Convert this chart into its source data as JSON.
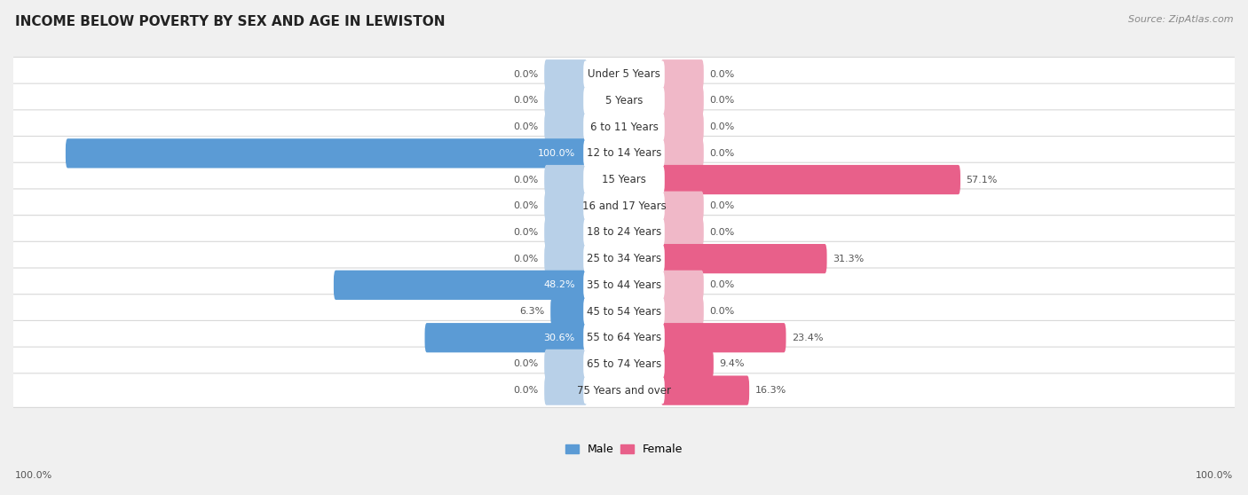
{
  "title": "INCOME BELOW POVERTY BY SEX AND AGE IN LEWISTON",
  "source": "Source: ZipAtlas.com",
  "categories": [
    "Under 5 Years",
    "5 Years",
    "6 to 11 Years",
    "12 to 14 Years",
    "15 Years",
    "16 and 17 Years",
    "18 to 24 Years",
    "25 to 34 Years",
    "35 to 44 Years",
    "45 to 54 Years",
    "55 to 64 Years",
    "65 to 74 Years",
    "75 Years and over"
  ],
  "male": [
    0.0,
    0.0,
    0.0,
    100.0,
    0.0,
    0.0,
    0.0,
    0.0,
    48.2,
    6.3,
    30.6,
    0.0,
    0.0
  ],
  "female": [
    0.0,
    0.0,
    0.0,
    0.0,
    57.1,
    0.0,
    0.0,
    31.3,
    0.0,
    0.0,
    23.4,
    9.4,
    16.3
  ],
  "male_color_light": "#b8d0e8",
  "female_color_light": "#f0b8c8",
  "male_color_full": "#5b9bd5",
  "female_color_full": "#e8608a",
  "background_color": "#f0f0f0",
  "row_bg_color": "#ffffff",
  "row_border_color": "#d8d8d8",
  "axis_max": 100.0,
  "legend_male": "Male",
  "legend_female": "Female",
  "title_fontsize": 11,
  "label_fontsize": 8.5,
  "value_fontsize": 8,
  "source_fontsize": 8,
  "default_bar_pct": 7.5
}
